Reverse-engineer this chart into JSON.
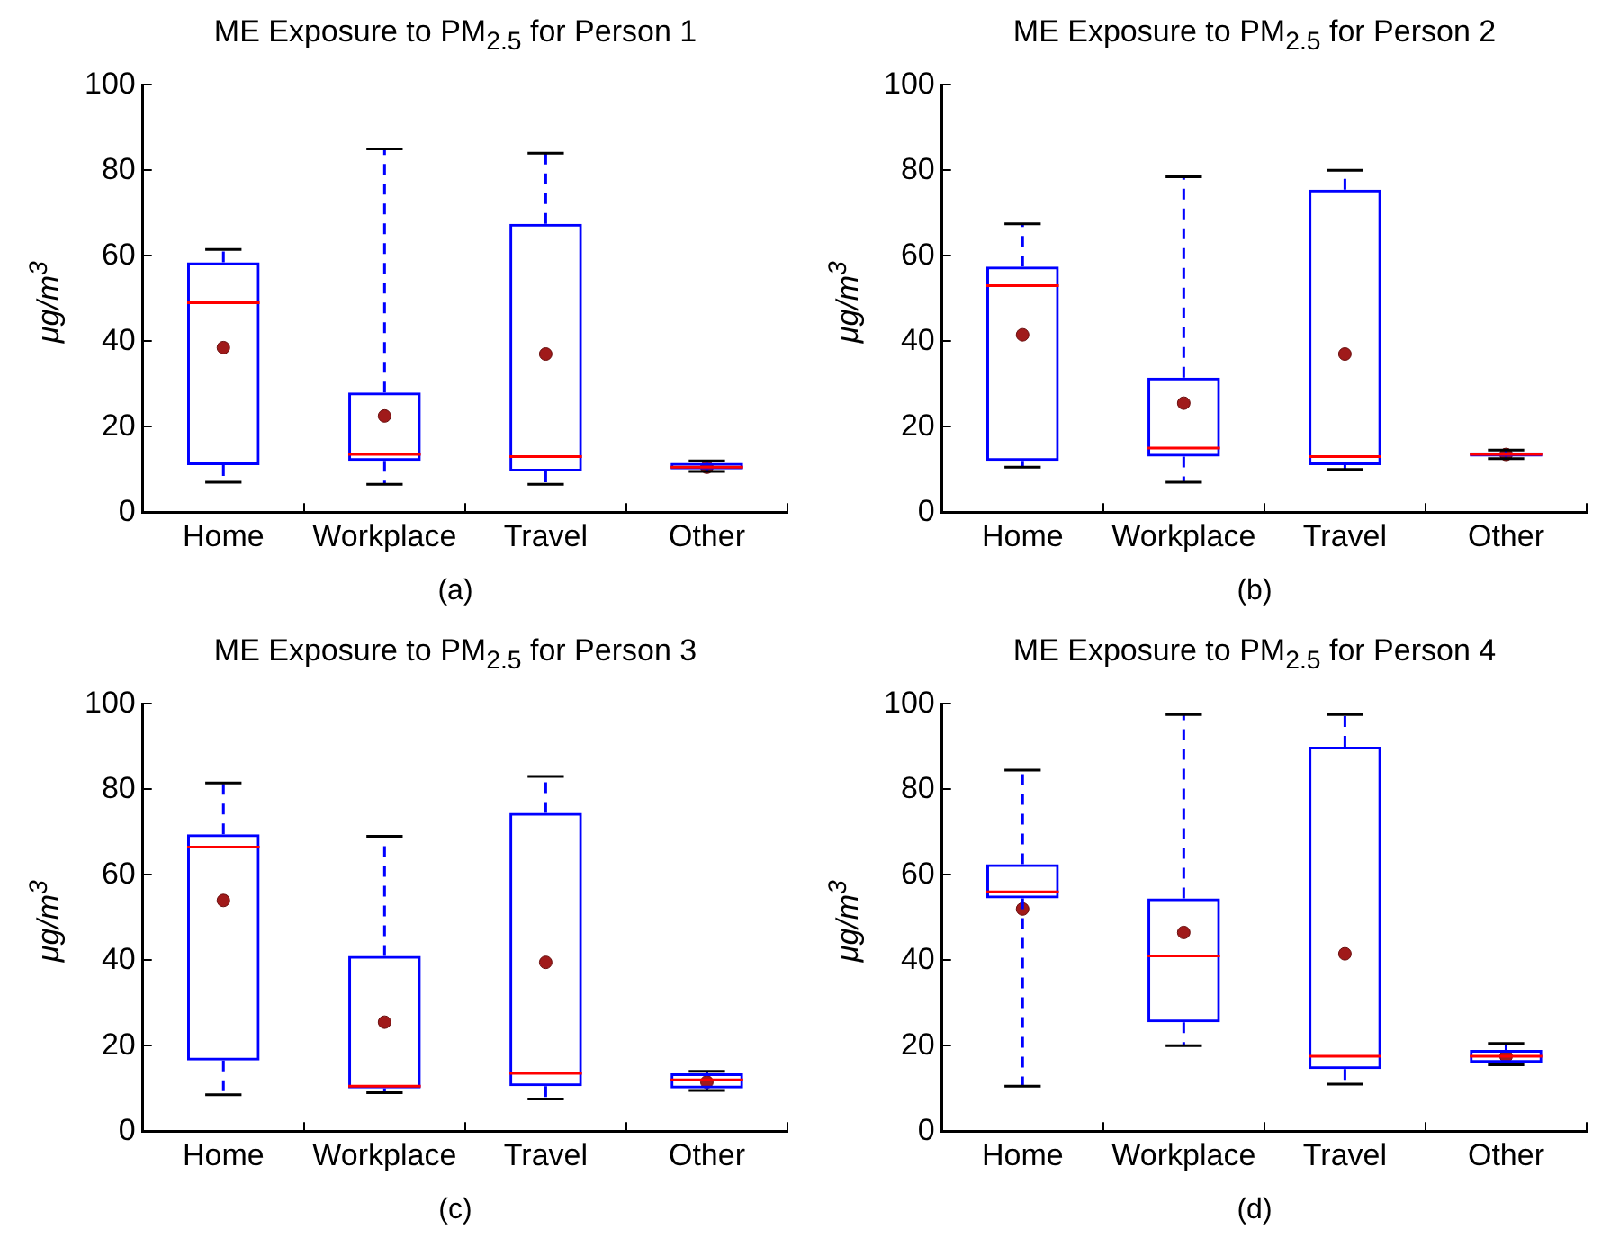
{
  "chart_data": [
    {
      "type": "box",
      "title": "ME Exposure to PM$_{2.5}$ for Person 1",
      "xlabel": "(a)",
      "ylabel": "μg/m$^{3}$",
      "categories": [
        "Home",
        "Workplace",
        "Travel",
        "Other"
      ],
      "ylim": [
        0,
        100
      ],
      "yticks": [
        0,
        20,
        40,
        60,
        80,
        100
      ],
      "marker": "circle",
      "boxes": [
        {
          "low": 7,
          "q1": 11,
          "median": 49,
          "q3": 58.5,
          "high": 61.5,
          "mean": 38.5
        },
        {
          "low": 6.5,
          "q1": 12,
          "median": 13.5,
          "q3": 28,
          "high": 85,
          "mean": 22.5
        },
        {
          "low": 6.5,
          "q1": 9.5,
          "median": 13,
          "q3": 67.5,
          "high": 84,
          "mean": 37
        },
        {
          "low": 9.5,
          "q1": 10,
          "median": 10.5,
          "q3": 11.5,
          "high": 12,
          "mean": 10.5
        }
      ]
    },
    {
      "type": "box",
      "title": "ME Exposure to PM$_{2.5}$ for Person 2",
      "xlabel": "(b)",
      "ylabel": "μg/m$^{3}$",
      "categories": [
        "Home",
        "Workplace",
        "Travel",
        "Other"
      ],
      "ylim": [
        0,
        100
      ],
      "yticks": [
        0,
        20,
        40,
        60,
        80,
        100
      ],
      "marker": "circle",
      "boxes": [
        {
          "low": 10.5,
          "q1": 12,
          "median": 53,
          "q3": 57.5,
          "high": 67.5,
          "mean": 41.5
        },
        {
          "low": 7,
          "q1": 13,
          "median": 15,
          "q3": 31.5,
          "high": 78.5,
          "mean": 25.5
        },
        {
          "low": 10,
          "q1": 11,
          "median": 13,
          "q3": 75.5,
          "high": 80,
          "mean": 37
        },
        {
          "low": 12.5,
          "q1": 13,
          "median": 13.5,
          "q3": 14,
          "high": 14.5,
          "mean": 13.5
        }
      ]
    },
    {
      "type": "box",
      "title": "ME Exposure to PM$_{2.5}$ for Person 3",
      "xlabel": "(c)",
      "ylabel": "μg/m$^{3}$",
      "categories": [
        "Home",
        "Workplace",
        "Travel",
        "Other"
      ],
      "ylim": [
        0,
        100
      ],
      "yticks": [
        0,
        20,
        40,
        60,
        80,
        100
      ],
      "marker": "circle",
      "boxes": [
        {
          "low": 8.5,
          "q1": 16.5,
          "median": 66.5,
          "q3": 69.5,
          "high": 81.5,
          "mean": 54
        },
        {
          "low": 9,
          "q1": 10,
          "median": 10.5,
          "q3": 41,
          "high": 69,
          "mean": 25.5
        },
        {
          "low": 7.5,
          "q1": 10.5,
          "median": 13.5,
          "q3": 74.5,
          "high": 83,
          "mean": 39.5
        },
        {
          "low": 9.5,
          "q1": 10,
          "median": 12,
          "q3": 13.5,
          "high": 14,
          "mean": 11.5
        }
      ]
    },
    {
      "type": "box",
      "title": "ME Exposure to PM$_{2.5}$ for Person 4",
      "xlabel": "(d)",
      "ylabel": "μg/m$^{3}$",
      "categories": [
        "Home",
        "Workplace",
        "Travel",
        "Other"
      ],
      "ylim": [
        0,
        100
      ],
      "yticks": [
        0,
        20,
        40,
        60,
        80,
        100
      ],
      "marker": "circle",
      "boxes": [
        {
          "low": 10.5,
          "q1": 54.5,
          "median": 56,
          "q3": 62.5,
          "high": 84.5,
          "mean": 52
        },
        {
          "low": 20,
          "q1": 25.5,
          "median": 41,
          "q3": 54.5,
          "high": 97.5,
          "mean": 46.5
        },
        {
          "low": 11,
          "q1": 14.5,
          "median": 17.5,
          "q3": 90,
          "high": 97.5,
          "mean": 41.5
        },
        {
          "low": 15.5,
          "q1": 16,
          "median": 17.5,
          "q3": 19,
          "high": 20.5,
          "mean": 17.5
        }
      ]
    }
  ]
}
